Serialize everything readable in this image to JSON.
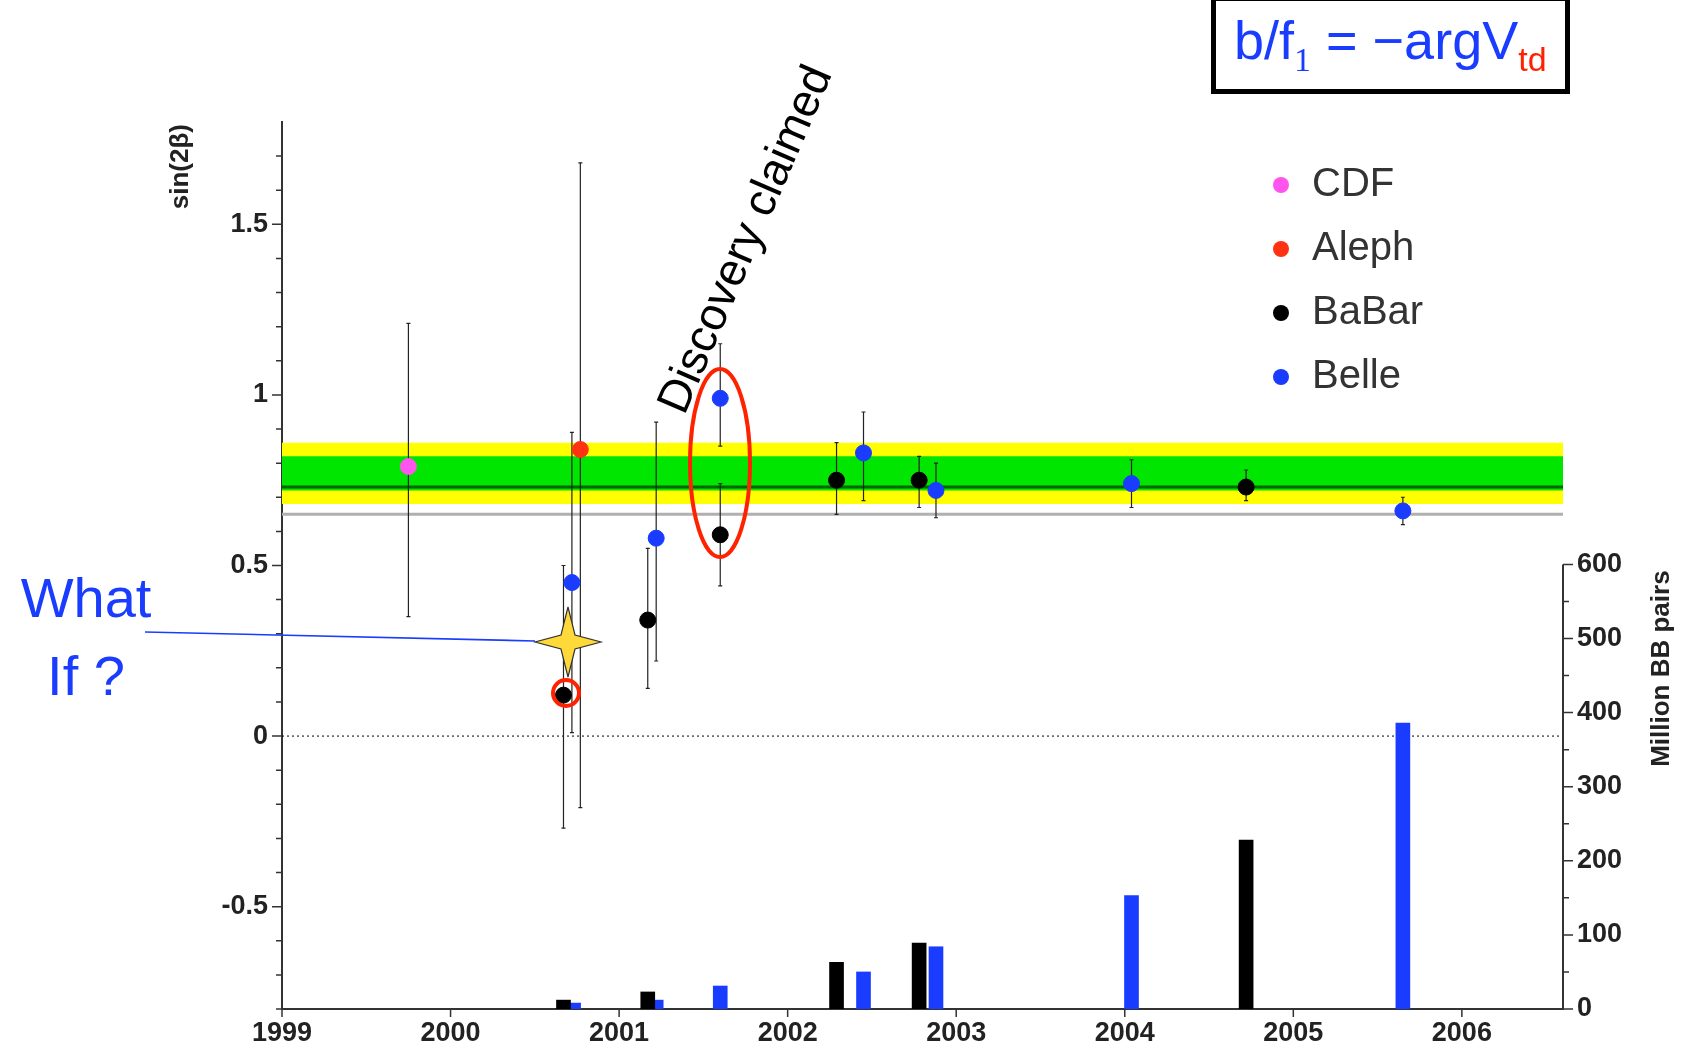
{
  "chart_data": {
    "type": "scatter",
    "ylabel": "sin(2β)",
    "y2label": "Million BB pairs",
    "legend": "top right",
    "marker": "circle",
    "grid": false,
    "xlim": [
      1999,
      2006.6
    ],
    "xticks": [
      1999,
      2000,
      2001,
      2002,
      2003,
      2004,
      2005,
      2006
    ],
    "ylim": [
      -0.8,
      1.8
    ],
    "yticks": [
      {
        "value": -0.8,
        "label": null
      },
      {
        "value": -0.7,
        "label": null
      },
      {
        "value": -0.6,
        "label": null
      },
      -0.5,
      {
        "value": -0.4,
        "label": null
      },
      {
        "value": -0.3,
        "label": null
      },
      {
        "value": -0.2,
        "label": null
      },
      {
        "value": -0.1,
        "label": null
      },
      0,
      {
        "value": 0.1,
        "label": null
      },
      {
        "value": 0.2,
        "label": null
      },
      {
        "value": 0.3,
        "label": null
      },
      {
        "value": 0.4,
        "label": null
      },
      0.5,
      {
        "value": 0.6,
        "label": null
      },
      {
        "value": 0.7,
        "label": null
      },
      {
        "value": 0.8,
        "label": null
      },
      {
        "value": 0.9,
        "label": null
      },
      1,
      {
        "value": 1.1,
        "label": null
      },
      {
        "value": 1.2,
        "label": null
      },
      {
        "value": 1.3,
        "label": null
      },
      {
        "value": 1.4,
        "label": null
      },
      1.5,
      {
        "value": 1.6,
        "label": null
      },
      {
        "value": 1.7,
        "label": null
      }
    ],
    "y2lim": [
      0,
      1197
    ],
    "y2ticks": [
      0,
      {
        "value": 50,
        "label": null
      },
      100,
      {
        "value": 150,
        "label": null
      },
      200,
      {
        "value": 250,
        "label": null
      },
      300,
      {
        "value": 350,
        "label": null
      },
      400,
      {
        "value": 450,
        "label": null
      },
      500,
      {
        "value": 550,
        "label": null
      },
      600
    ],
    "series": [
      {
        "type": "bar",
        "axis": "y2",
        "color": "#000000",
        "x": [
          2000.67,
          2001.17,
          2002.29,
          2002.78,
          2004.72
        ],
        "values": [
          12,
          23,
          63,
          89,
          228
        ]
      },
      {
        "type": "bar",
        "axis": "y2",
        "color": "#1a3cff",
        "x": [
          2000.73,
          2001.22,
          2001.6,
          2002.45,
          2002.88,
          2004.04,
          2005.65
        ],
        "values": [
          8,
          12,
          31,
          50,
          84,
          153,
          386
        ]
      },
      {
        "name": "CDF",
        "color": "#ff55ee",
        "x": [
          1999.75
        ],
        "values": [
          0.79
        ],
        "errors": [
          [
            0.35,
            1.21
          ]
        ]
      },
      {
        "name": "Aleph",
        "color": "#ff3311",
        "x": [
          2000.77
        ],
        "values": [
          0.84
        ],
        "errors": [
          [
            -0.21,
            1.68
          ]
        ]
      },
      {
        "name": "BaBar",
        "color": "#000000",
        "x": [
          2000.67,
          2001.17,
          2001.6,
          2002.29,
          2002.78,
          2004.72
        ],
        "values": [
          0.12,
          0.34,
          0.59,
          0.75,
          0.75,
          0.73
        ],
        "errors": [
          [
            -0.27,
            0.5
          ],
          [
            0.14,
            0.55
          ],
          [
            0.44,
            0.74
          ],
          [
            0.65,
            0.86
          ],
          [
            0.67,
            0.82
          ],
          [
            0.69,
            0.78
          ]
        ]
      },
      {
        "name": "Belle",
        "color": "#1a3cff",
        "x": [
          2000.72,
          2001.22,
          2001.6,
          2002.45,
          2002.88,
          2004.04,
          2005.65
        ],
        "values": [
          0.45,
          0.58,
          0.99,
          0.83,
          0.72,
          0.74,
          0.66
        ],
        "errors": [
          [
            0.01,
            0.89
          ],
          [
            0.22,
            0.92
          ],
          [
            0.85,
            1.15
          ],
          [
            0.69,
            0.95
          ],
          [
            0.64,
            0.8
          ],
          [
            0.67,
            0.81
          ],
          [
            0.62,
            0.7
          ]
        ]
      }
    ],
    "bands": [
      {
        "axis": "y",
        "from": 0.68,
        "to": 0.86,
        "color": "#ffff00"
      },
      {
        "axis": "y",
        "from": 0.72,
        "to": 0.82,
        "color": "#00e600"
      }
    ],
    "ref_lines": [
      {
        "axis": "y",
        "value": 0.73,
        "color": "#006600"
      },
      {
        "axis": "y",
        "value": 0.65,
        "color": "#b0b0b0"
      },
      {
        "axis": "y",
        "value": 0,
        "color": "#000000",
        "line_style": "dotted"
      }
    ],
    "annotations": [
      "b/f$_{1}$ = −argV$_{td}$",
      {
        "text": "Discovery claimed",
        "x": 2001.6,
        "y": 0.99
      },
      "What If ?"
    ]
  }
}
